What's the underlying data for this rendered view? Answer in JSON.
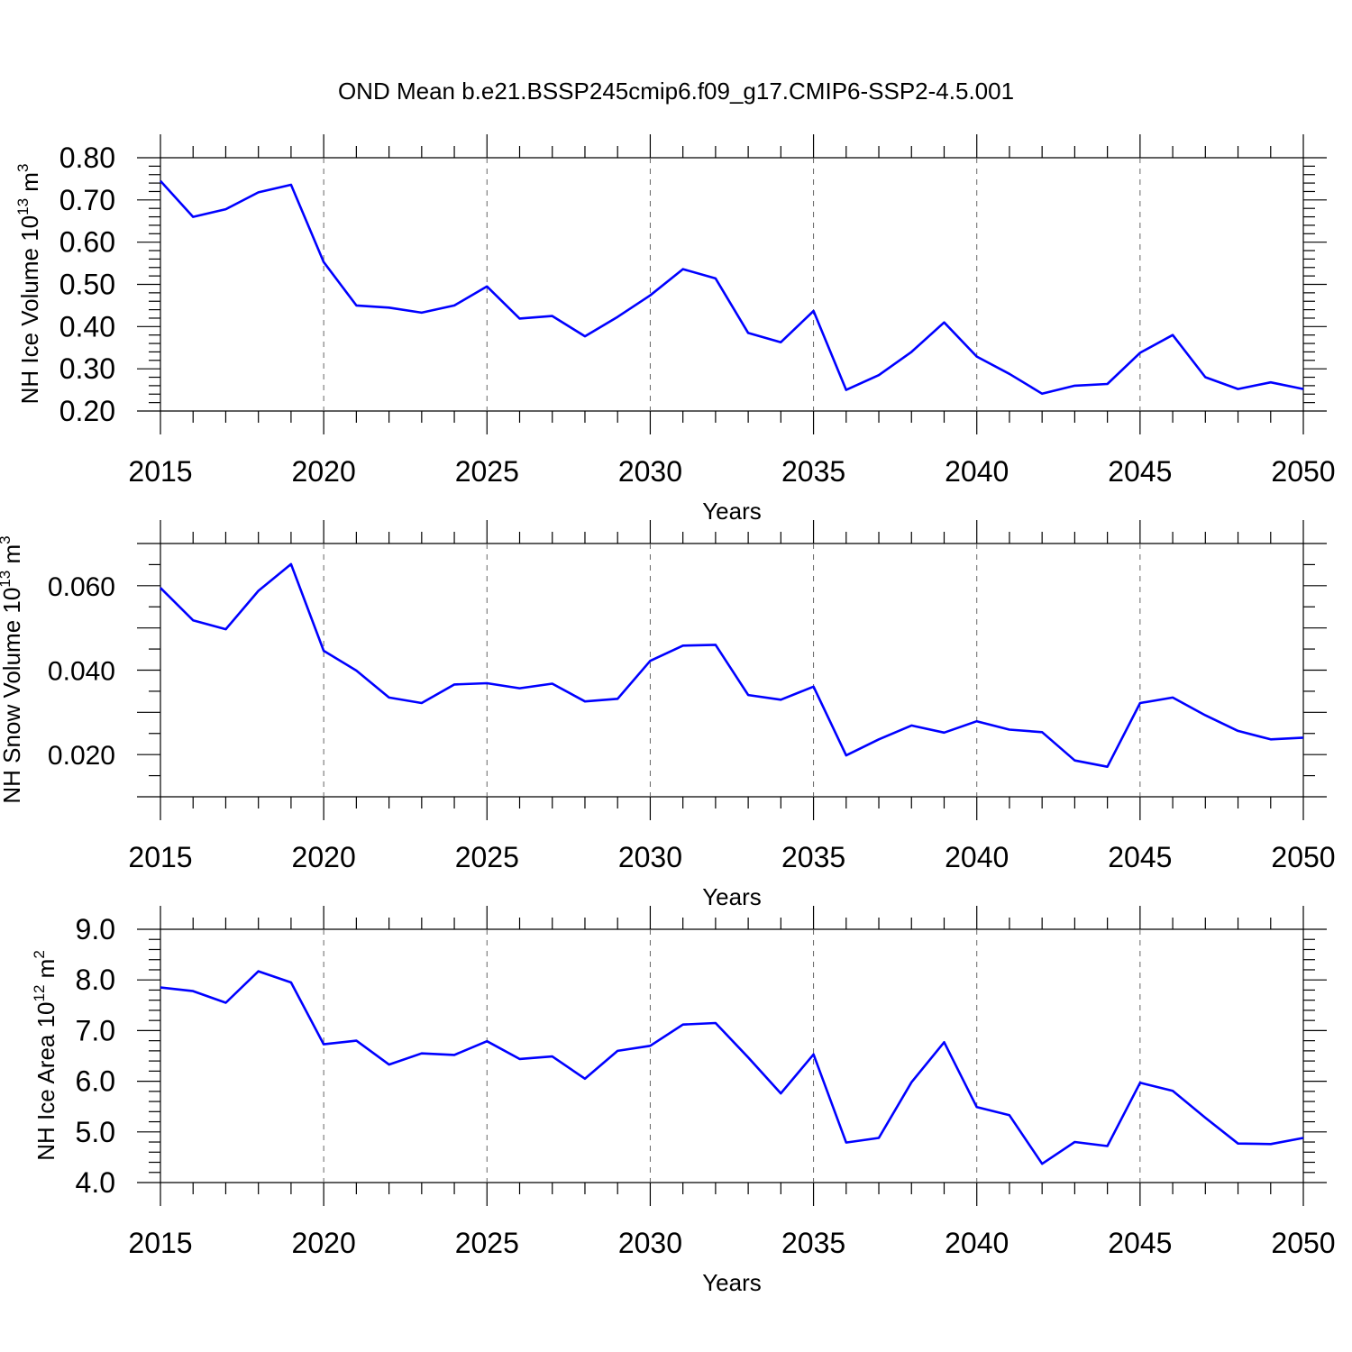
{
  "title": "OND Mean b.e21.BSSP245cmip6.f09_g17.CMIP6-SSP2-4.5.001",
  "chart_data": [
    {
      "type": "line",
      "ylabel": "NH Ice Volume 10",
      "ylabel_exp": "13",
      "ylabel_unit": " m",
      "ylabel_unit_exp": "3",
      "xlabel": "Years",
      "xlim": [
        2015,
        2050
      ],
      "ylim": [
        0.2,
        0.8
      ],
      "ytick_values": [
        0.2,
        0.3,
        0.4,
        0.5,
        0.6,
        0.7,
        0.8
      ],
      "ytick_labels": [
        "0.20",
        "0.30",
        "0.40",
        "0.50",
        "0.60",
        "0.70",
        "0.80"
      ],
      "yminor_step": 0.02,
      "xtick_values": [
        2015,
        2020,
        2025,
        2030,
        2035,
        2040,
        2045,
        2050
      ],
      "xtick_labels": [
        "2015",
        "2020",
        "2025",
        "2030",
        "2035",
        "2040",
        "2045",
        "2050"
      ],
      "grid": "vertical dashed at major x ticks",
      "line_color": "#0000ff",
      "x": [
        2015,
        2016,
        2017,
        2018,
        2019,
        2020,
        2021,
        2022,
        2023,
        2024,
        2025,
        2026,
        2027,
        2028,
        2029,
        2030,
        2031,
        2032,
        2033,
        2034,
        2035,
        2036,
        2037,
        2038,
        2039,
        2040,
        2041,
        2042,
        2043,
        2044,
        2045,
        2046,
        2047,
        2048,
        2049,
        2050
      ],
      "values": [
        0.745,
        0.66,
        0.678,
        0.718,
        0.736,
        0.553,
        0.45,
        0.445,
        0.433,
        0.45,
        0.495,
        0.419,
        0.425,
        0.377,
        0.423,
        0.474,
        0.536,
        0.514,
        0.385,
        0.363,
        0.437,
        0.25,
        0.285,
        0.34,
        0.41,
        0.329,
        0.288,
        0.241,
        0.26,
        0.264,
        0.338,
        0.38,
        0.28,
        0.252,
        0.268,
        0.252
      ]
    },
    {
      "type": "line",
      "ylabel": "NH Snow Volume 10",
      "ylabel_exp": "13",
      "ylabel_unit": " m",
      "ylabel_unit_exp": "3",
      "xlabel": "Years",
      "xlim": [
        2015,
        2050
      ],
      "ylim": [
        0.01,
        0.07
      ],
      "ytick_values": [
        0.02,
        0.04,
        0.06
      ],
      "ytick_labels": [
        "0.020",
        "0.040",
        "0.060"
      ],
      "ymid_values": [
        0.01,
        0.03,
        0.05,
        0.07
      ],
      "yminor_step": 0.005,
      "xtick_values": [
        2015,
        2020,
        2025,
        2030,
        2035,
        2040,
        2045,
        2050
      ],
      "xtick_labels": [
        "2015",
        "2020",
        "2025",
        "2030",
        "2035",
        "2040",
        "2045",
        "2050"
      ],
      "grid": "vertical dashed at major x ticks",
      "line_color": "#0000ff",
      "x": [
        2015,
        2016,
        2017,
        2018,
        2019,
        2020,
        2021,
        2022,
        2023,
        2024,
        2025,
        2026,
        2027,
        2028,
        2029,
        2030,
        2031,
        2032,
        2033,
        2034,
        2035,
        2036,
        2037,
        2038,
        2039,
        2040,
        2041,
        2042,
        2043,
        2044,
        2045,
        2046,
        2047,
        2048,
        2049,
        2050
      ],
      "values": [
        0.0595,
        0.0518,
        0.0497,
        0.0588,
        0.0651,
        0.0446,
        0.0399,
        0.0335,
        0.0322,
        0.0366,
        0.0369,
        0.0357,
        0.0368,
        0.0326,
        0.0332,
        0.0422,
        0.0458,
        0.046,
        0.0341,
        0.033,
        0.0361,
        0.0198,
        0.0236,
        0.0269,
        0.0252,
        0.0279,
        0.0259,
        0.0253,
        0.0186,
        0.0171,
        0.0322,
        0.0335,
        0.0293,
        0.0256,
        0.0236,
        0.024
      ]
    },
    {
      "type": "line",
      "ylabel": "NH Ice Area 10",
      "ylabel_exp": "12",
      "ylabel_unit": " m",
      "ylabel_unit_exp": "2",
      "xlabel": "Years",
      "xlim": [
        2015,
        2050
      ],
      "ylim": [
        4.0,
        9.0
      ],
      "ytick_values": [
        4,
        5,
        6,
        7,
        8,
        9
      ],
      "ytick_labels": [
        "4.0",
        "5.0",
        "6.0",
        "7.0",
        "8.0",
        "9.0"
      ],
      "yminor_step": 0.2,
      "xtick_values": [
        2015,
        2020,
        2025,
        2030,
        2035,
        2040,
        2045,
        2050
      ],
      "xtick_labels": [
        "2015",
        "2020",
        "2025",
        "2030",
        "2035",
        "2040",
        "2045",
        "2050"
      ],
      "grid": "vertical dashed at major x ticks",
      "line_color": "#0000ff",
      "x": [
        2015,
        2016,
        2017,
        2018,
        2019,
        2020,
        2021,
        2022,
        2023,
        2024,
        2025,
        2026,
        2027,
        2028,
        2029,
        2030,
        2031,
        2032,
        2033,
        2034,
        2035,
        2036,
        2037,
        2038,
        2039,
        2040,
        2041,
        2042,
        2043,
        2044,
        2045,
        2046,
        2047,
        2048,
        2049,
        2050
      ],
      "values": [
        7.85,
        7.78,
        7.55,
        8.17,
        7.95,
        6.73,
        6.8,
        6.33,
        6.55,
        6.52,
        6.79,
        6.44,
        6.49,
        6.05,
        6.6,
        6.7,
        7.12,
        7.15,
        6.47,
        5.76,
        6.53,
        4.79,
        4.88,
        5.98,
        6.77,
        5.49,
        5.33,
        4.37,
        4.8,
        4.72,
        5.97,
        5.81,
        5.28,
        4.77,
        4.76,
        4.88
      ]
    }
  ]
}
